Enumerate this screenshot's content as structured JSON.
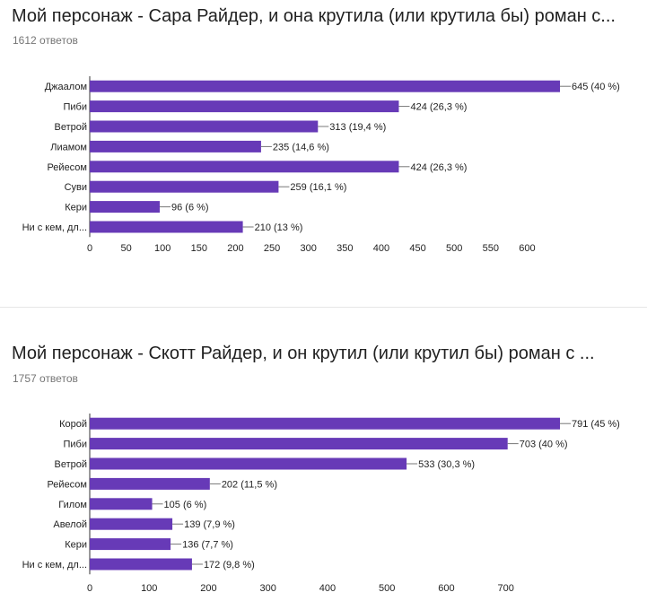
{
  "charts": [
    {
      "title": "Мой персонаж - Сара Райдер, и она крутила (или крутила бы) роман с...",
      "responses": "1612 ответов",
      "chart_data": {
        "type": "bar",
        "orientation": "horizontal",
        "bar_color": "#673ab7",
        "categories": [
          "Джаалом",
          "Пиби",
          "Ветрой",
          "Лиамом",
          "Рейесом",
          "Суви",
          "Кери",
          "Ни с кем, дл..."
        ],
        "values": [
          645,
          424,
          313,
          235,
          424,
          259,
          96,
          210
        ],
        "data_labels": [
          "645 (40 %)",
          "424 (26,3 %)",
          "313 (19,4 %)",
          "235 (14,6 %)",
          "424 (26,3 %)",
          "259 (16,1 %)",
          "96 (6 %)",
          "210 (13 %)"
        ],
        "xticks": [
          "0",
          "50",
          "100",
          "150",
          "200",
          "250",
          "300",
          "350",
          "400",
          "450",
          "500",
          "550",
          "600"
        ],
        "xlim": [
          0,
          645
        ]
      }
    },
    {
      "title": "Мой персонаж - Скотт Райдер, и он крутил (или крутил бы) роман с ...",
      "responses": "1757 ответов",
      "chart_data": {
        "type": "bar",
        "orientation": "horizontal",
        "bar_color": "#673ab7",
        "categories": [
          "Корой",
          "Пиби",
          "Ветрой",
          "Рейесом",
          "Гилом",
          "Авелой",
          "Кери",
          "Ни с кем, дл..."
        ],
        "values": [
          791,
          703,
          533,
          202,
          105,
          139,
          136,
          172
        ],
        "data_labels": [
          "791 (45 %)",
          "703 (40 %)",
          "533 (30,3 %)",
          "202 (11,5 %)",
          "105 (6 %)",
          "139 (7,9 %)",
          "136 (7,7 %)",
          "172 (9,8 %)"
        ],
        "xticks": [
          "0",
          "100",
          "200",
          "300",
          "400",
          "500",
          "600",
          "700"
        ],
        "xlim": [
          0,
          791
        ]
      }
    }
  ]
}
